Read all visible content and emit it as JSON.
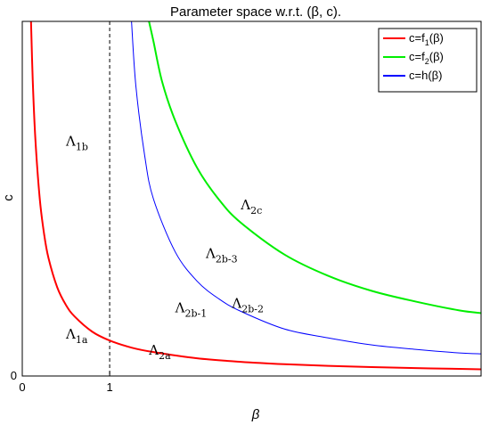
{
  "chart_data": {
    "type": "line",
    "title": "Parameter space w.r.t. (β, c).",
    "xlabel": "β",
    "ylabel": "c",
    "xlim": [
      0,
      5.25
    ],
    "ylim": [
      0,
      4
    ],
    "x_ticks": [
      {
        "value": 0,
        "label": "0"
      },
      {
        "value": 1,
        "label": "1"
      }
    ],
    "y_ticks": [
      {
        "value": 0,
        "label": "0"
      }
    ],
    "grid": false,
    "legend_position": "top-right",
    "series": [
      {
        "name": "c=f₁(β)",
        "name_main": "c=f",
        "name_sub": "1",
        "name_arg": "(β)",
        "color": "#ff0000",
        "x": [
          0.1,
          0.12,
          0.15,
          0.2,
          0.25,
          0.3,
          0.4,
          0.5,
          0.6,
          0.8,
          1.0,
          1.25,
          1.5,
          2.0,
          2.5,
          3.0,
          3.5,
          4.0,
          4.5,
          5.0,
          5.25
        ],
        "y": [
          4.0,
          3.33,
          2.67,
          2.0,
          1.6,
          1.33,
          1.0,
          0.8,
          0.67,
          0.5,
          0.4,
          0.32,
          0.27,
          0.2,
          0.16,
          0.133,
          0.114,
          0.1,
          0.089,
          0.08,
          0.076
        ]
      },
      {
        "name": "c=f₂(β)",
        "name_main": "c=f",
        "name_sub": "2",
        "name_arg": "(β)",
        "color": "#00ee00",
        "x": [
          1.45,
          1.5,
          1.6,
          1.75,
          2.0,
          2.25,
          2.5,
          3.0,
          3.5,
          4.0,
          4.5,
          5.0,
          5.25
        ],
        "y": [
          4.0,
          3.78,
          3.32,
          2.88,
          2.35,
          1.99,
          1.73,
          1.37,
          1.13,
          0.96,
          0.84,
          0.74,
          0.71
        ]
      },
      {
        "name": "c=h(β)",
        "name_main": "c=h",
        "name_sub": "",
        "name_arg": "(β)",
        "color": "#0000ff",
        "x": [
          1.25,
          1.3,
          1.4,
          1.5,
          1.75,
          2.0,
          2.25,
          2.5,
          3.0,
          3.5,
          4.0,
          4.5,
          5.0,
          5.25
        ],
        "y": [
          4.0,
          3.27,
          2.49,
          2.0,
          1.4,
          1.07,
          0.87,
          0.73,
          0.53,
          0.43,
          0.35,
          0.3,
          0.26,
          0.25
        ]
      }
    ],
    "reference_line": {
      "x": 1,
      "style": "dashed",
      "color": "#000000"
    },
    "annotations": [
      {
        "main": "Λ",
        "sub": "1b",
        "x": 0.5,
        "y": 2.6
      },
      {
        "main": "Λ",
        "sub": "1a",
        "x": 0.5,
        "y": 0.42
      },
      {
        "main": "Λ",
        "sub": "2a",
        "x": 1.45,
        "y": 0.24
      },
      {
        "main": "Λ",
        "sub": "2b-1",
        "x": 1.75,
        "y": 0.72
      },
      {
        "main": "Λ",
        "sub": "2b-2",
        "x": 2.4,
        "y": 0.77
      },
      {
        "main": "Λ",
        "sub": "2b-3",
        "x": 2.1,
        "y": 1.33
      },
      {
        "main": "Λ",
        "sub": "2c",
        "x": 2.5,
        "y": 1.88
      }
    ]
  }
}
